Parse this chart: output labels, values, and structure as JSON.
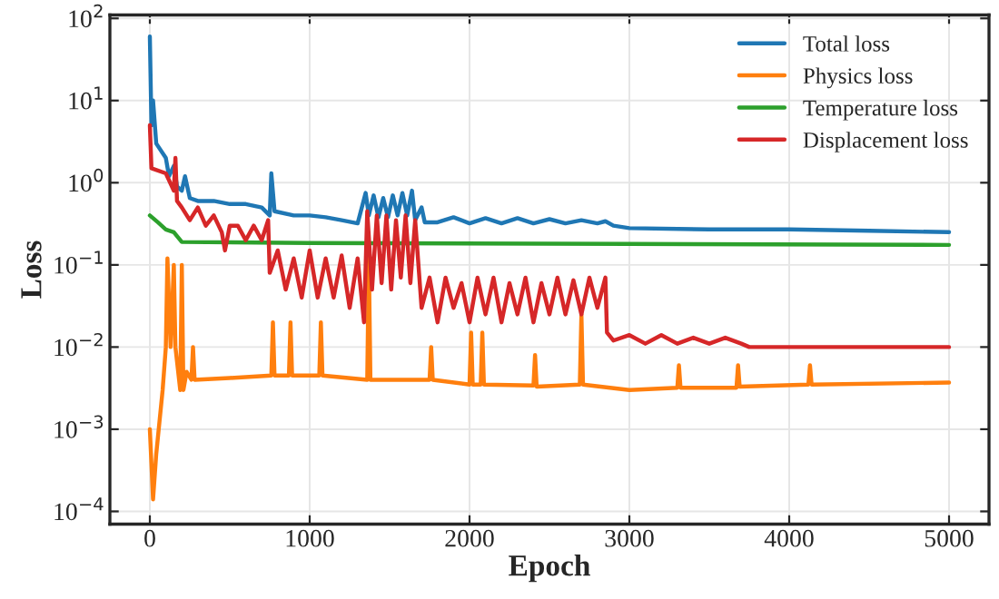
{
  "chart_data": {
    "type": "line",
    "xlabel": "Epoch",
    "ylabel": "Loss",
    "log": "y",
    "grid": true,
    "legend": "top right",
    "line_style": "solid",
    "marker": "none",
    "xlim": [
      -250,
      5250
    ],
    "xticks": [
      0,
      1000,
      2000,
      3000,
      4000,
      5000
    ],
    "ylim": [
      7e-05,
      110
    ],
    "yticks": [
      {
        "value": 0.0001,
        "label": "10$^{−4}$"
      },
      {
        "value": 0.001,
        "label": "10$^{−3}$"
      },
      {
        "value": 0.01,
        "label": "10$^{−2}$"
      },
      {
        "value": 0.1,
        "label": "10$^{−1}$"
      },
      {
        "value": 1,
        "label": "10$^{0}$"
      },
      {
        "value": 10,
        "label": "10$^{1}$"
      },
      {
        "value": 100,
        "label": "10$^{2}$"
      }
    ],
    "series": [
      {
        "name": "Total loss",
        "color": "#1f77b4",
        "x": [
          0,
          10,
          20,
          40,
          100,
          120,
          150,
          170,
          200,
          220,
          250,
          300,
          400,
          500,
          600,
          700,
          750,
          760,
          780,
          900,
          1000,
          1100,
          1200,
          1300,
          1350,
          1370,
          1400,
          1430,
          1460,
          1490,
          1520,
          1550,
          1580,
          1610,
          1640,
          1660,
          1700,
          1720,
          1800,
          1900,
          2000,
          2100,
          2200,
          2300,
          2400,
          2500,
          2600,
          2700,
          2800,
          2850,
          2900,
          3000,
          3500,
          4000,
          4500,
          5000
        ],
        "values": [
          60,
          5,
          10,
          3,
          2,
          1.2,
          1.6,
          0.9,
          0.8,
          1.2,
          0.65,
          0.6,
          0.6,
          0.55,
          0.55,
          0.5,
          0.4,
          1.3,
          0.45,
          0.4,
          0.4,
          0.38,
          0.35,
          0.32,
          0.75,
          0.4,
          0.7,
          0.38,
          0.65,
          0.38,
          0.7,
          0.4,
          0.75,
          0.4,
          0.8,
          0.35,
          0.5,
          0.33,
          0.33,
          0.38,
          0.32,
          0.37,
          0.32,
          0.37,
          0.32,
          0.36,
          0.32,
          0.35,
          0.32,
          0.34,
          0.3,
          0.28,
          0.27,
          0.27,
          0.26,
          0.25
        ]
      },
      {
        "name": "Physics loss",
        "color": "#ff7f0e",
        "x": [
          0,
          20,
          40,
          80,
          100,
          110,
          130,
          150,
          160,
          190,
          200,
          210,
          230,
          260,
          270,
          280,
          500,
          760,
          770,
          780,
          870,
          880,
          890,
          1060,
          1070,
          1080,
          1360,
          1370,
          1380,
          1500,
          1750,
          1760,
          1770,
          2000,
          2010,
          2020,
          2070,
          2080,
          2090,
          2400,
          2410,
          2420,
          2690,
          2700,
          2710,
          3000,
          3300,
          3310,
          3320,
          3670,
          3680,
          3690,
          4120,
          4130,
          4140,
          5000
        ],
        "values": [
          0.001,
          0.00014,
          0.0005,
          0.003,
          0.01,
          0.12,
          0.01,
          0.1,
          0.01,
          0.003,
          0.1,
          0.003,
          0.005,
          0.004,
          0.01,
          0.004,
          0.0042,
          0.0045,
          0.02,
          0.0045,
          0.0045,
          0.02,
          0.0045,
          0.0045,
          0.02,
          0.0045,
          0.004,
          0.12,
          0.004,
          0.004,
          0.004,
          0.01,
          0.004,
          0.0035,
          0.015,
          0.0035,
          0.0035,
          0.015,
          0.0035,
          0.0034,
          0.008,
          0.0033,
          0.0035,
          0.025,
          0.0035,
          0.003,
          0.0032,
          0.006,
          0.0032,
          0.0032,
          0.006,
          0.0033,
          0.0035,
          0.006,
          0.0035,
          0.0037
        ]
      },
      {
        "name": "Temperature loss",
        "color": "#2ca02c",
        "x": [
          0,
          50,
          100,
          150,
          200,
          1000,
          3000,
          5000
        ],
        "values": [
          0.4,
          0.33,
          0.27,
          0.25,
          0.19,
          0.185,
          0.18,
          0.175
        ]
      },
      {
        "name": "Displacement loss",
        "color": "#d62728",
        "x": [
          0,
          10,
          100,
          150,
          160,
          170,
          200,
          250,
          300,
          350,
          400,
          450,
          470,
          500,
          550,
          600,
          650,
          700,
          740,
          750,
          800,
          850,
          900,
          950,
          1000,
          1050,
          1100,
          1150,
          1200,
          1250,
          1300,
          1340,
          1360,
          1390,
          1420,
          1450,
          1480,
          1510,
          1540,
          1570,
          1600,
          1630,
          1660,
          1700,
          1750,
          1800,
          1850,
          1900,
          1950,
          2000,
          2050,
          2100,
          2150,
          2200,
          2250,
          2300,
          2350,
          2400,
          2450,
          2500,
          2550,
          2600,
          2650,
          2700,
          2750,
          2800,
          2850,
          2860,
          2900,
          3000,
          3100,
          3200,
          3300,
          3400,
          3500,
          3600,
          3700,
          3750,
          4000,
          4500,
          5000
        ],
        "values": [
          5,
          1.5,
          1.3,
          0.8,
          2,
          0.6,
          0.5,
          0.35,
          0.5,
          0.3,
          0.4,
          0.25,
          0.15,
          0.3,
          0.3,
          0.2,
          0.3,
          0.2,
          0.35,
          0.08,
          0.15,
          0.05,
          0.12,
          0.04,
          0.15,
          0.04,
          0.12,
          0.04,
          0.13,
          0.03,
          0.12,
          0.02,
          0.45,
          0.05,
          0.4,
          0.06,
          0.4,
          0.05,
          0.35,
          0.07,
          0.4,
          0.06,
          0.35,
          0.03,
          0.07,
          0.02,
          0.07,
          0.03,
          0.06,
          0.02,
          0.07,
          0.025,
          0.07,
          0.02,
          0.06,
          0.025,
          0.07,
          0.02,
          0.06,
          0.025,
          0.07,
          0.025,
          0.065,
          0.025,
          0.07,
          0.03,
          0.07,
          0.015,
          0.012,
          0.014,
          0.011,
          0.014,
          0.011,
          0.013,
          0.011,
          0.013,
          0.011,
          0.01,
          0.01,
          0.01,
          0.01
        ]
      }
    ]
  }
}
